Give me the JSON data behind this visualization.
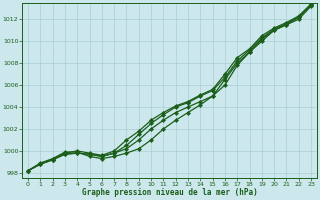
{
  "background_color": "#cce8ec",
  "grid_color": "#aacdd4",
  "line_color": "#1a5e1a",
  "xlabel": "Graphe pression niveau de la mer (hPa)",
  "ylim": [
    997.5,
    1013.5
  ],
  "xlim": [
    -0.5,
    23.5
  ],
  "yticks": [
    998,
    1000,
    1002,
    1004,
    1006,
    1008,
    1010,
    1012
  ],
  "xticks": [
    0,
    1,
    2,
    3,
    4,
    5,
    6,
    7,
    8,
    9,
    10,
    11,
    12,
    13,
    14,
    15,
    16,
    17,
    18,
    19,
    20,
    21,
    22,
    23
  ],
  "series": [
    [
      998.2,
      998.8,
      999.2,
      999.7,
      999.8,
      999.7,
      999.5,
      999.8,
      1000.2,
      1001.0,
      1002.0,
      1002.8,
      1003.5,
      1004.0,
      1004.5,
      1005.0,
      1006.5,
      1008.0,
      1009.0,
      1010.2,
      1011.0,
      1011.5,
      1012.0,
      1013.2
    ],
    [
      998.2,
      998.8,
      999.2,
      999.7,
      999.8,
      999.7,
      999.5,
      999.8,
      1000.5,
      1001.5,
      1002.5,
      1003.3,
      1004.0,
      1004.4,
      1005.0,
      1005.5,
      1006.7,
      1008.2,
      1009.2,
      1010.3,
      1011.1,
      1011.6,
      1012.2,
      1013.3
    ],
    [
      998.2,
      998.8,
      999.2,
      999.8,
      1000.0,
      999.8,
      999.6,
      1000.0,
      1001.0,
      1001.8,
      1002.8,
      1003.5,
      1004.1,
      1004.5,
      1005.1,
      1005.6,
      1007.0,
      1008.5,
      1009.3,
      1010.5,
      1011.2,
      1011.7,
      1012.3,
      1013.4
    ],
    [
      998.2,
      998.9,
      999.3,
      999.9,
      999.9,
      999.5,
      999.3,
      999.5,
      999.8,
      1000.2,
      1001.0,
      1002.0,
      1002.8,
      1003.5,
      1004.2,
      1005.0,
      1006.0,
      1007.8,
      1009.0,
      1010.0,
      1011.0,
      1011.5,
      1012.2,
      1013.3
    ]
  ]
}
